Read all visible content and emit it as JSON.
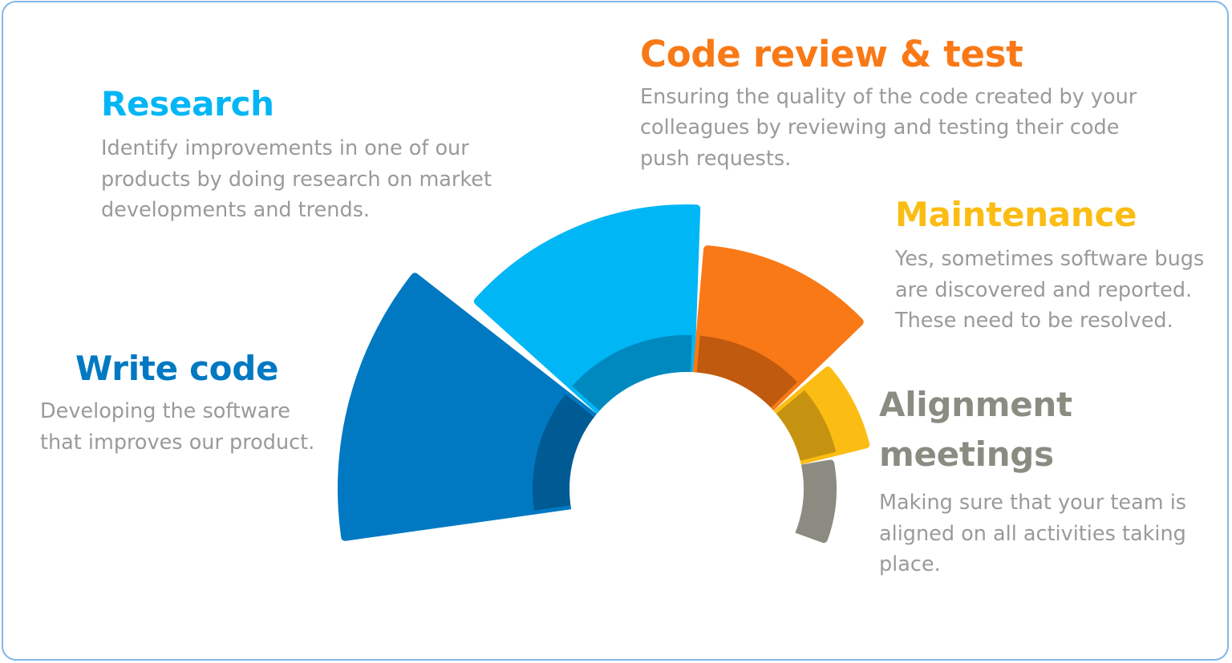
{
  "colors": {
    "write_code": "#0079c2",
    "research": "#00b6f5",
    "review": "#f97916",
    "maintenance": "#fbbd14",
    "alignment": "#8b8b82",
    "body_text": "#9a9a9a"
  },
  "segments": [
    {
      "key": "write_code",
      "title": "Write code",
      "description": "Developing the software that improves our product.",
      "color": "#0079c2",
      "inner_color": "#005a94"
    },
    {
      "key": "research",
      "title": "Research",
      "description": "Identify improvements in one of our products by doing research on market developments and trends.",
      "color": "#00b6f5",
      "inner_color": "#0089bf"
    },
    {
      "key": "review",
      "title": "Code review & test",
      "description": "Ensuring the quality of the code created by your colleagues by reviewing and testing their code push requests.",
      "color": "#f97916",
      "inner_color": "#bf5a0e"
    },
    {
      "key": "maintenance",
      "title": "Maintenance",
      "description": "Yes, sometimes software bugs are discovered and reported. These need to be resolved.",
      "color": "#fbbd14",
      "inner_color": "#c69310"
    },
    {
      "key": "alignment",
      "title": "Alignment meetings",
      "description": "Making sure that your team is aligned on all activities taking place.",
      "color": "#8b8b82",
      "inner_color": "#8b8b82"
    }
  ]
}
